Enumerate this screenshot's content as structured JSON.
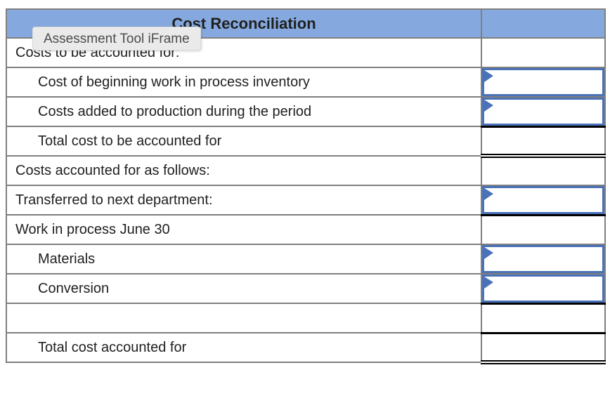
{
  "header": {
    "title": "Cost Reconciliation",
    "value_column_label": ""
  },
  "tooltip": {
    "text": "Assessment Tool iFrame"
  },
  "colors": {
    "header_bg": "#85A9DE",
    "input_border": "#4A72B8",
    "grid": "#7F7F7F",
    "black": "#000000",
    "text": "#1F1F1F",
    "tooltip_bg": "#EAEAEA",
    "tooltip_text": "#4C4C4C"
  },
  "rows": [
    {
      "label": "Costs to be accounted for:",
      "indent": false,
      "cell": "plain",
      "value": ""
    },
    {
      "label": "Cost of beginning work in process inventory",
      "indent": true,
      "cell": "input",
      "value": ""
    },
    {
      "label": "Costs added to production during the period",
      "indent": true,
      "cell": "input",
      "value": ""
    },
    {
      "label": "Total cost to be accounted for",
      "indent": true,
      "cell": "bt-blk bb-dbl",
      "value": ""
    },
    {
      "label": "Costs accounted for as follows:",
      "indent": false,
      "cell": "plain",
      "value": ""
    },
    {
      "label": "Transferred to next department:",
      "indent": false,
      "cell": "input bb-blk",
      "value": ""
    },
    {
      "label": "Work in process June 30",
      "indent": false,
      "cell": "plain",
      "value": ""
    },
    {
      "label": "Materials",
      "indent": true,
      "cell": "input",
      "value": ""
    },
    {
      "label": "Conversion",
      "indent": true,
      "cell": "input bb-blk",
      "value": ""
    },
    {
      "label": "",
      "indent": false,
      "cell": "bt-blk bb-blk",
      "value": ""
    },
    {
      "label": "Total cost accounted for",
      "indent": true,
      "cell": "bt-blk bb-dbl",
      "value": ""
    }
  ]
}
